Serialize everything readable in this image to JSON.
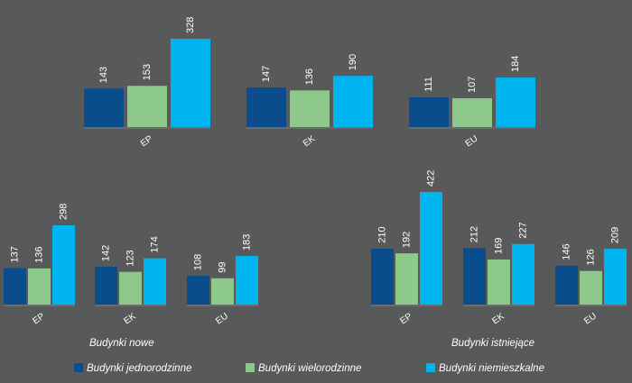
{
  "colors": {
    "background": "#58595b",
    "baseline_band": "#6b6c6e"
  },
  "legend": [
    {
      "label": "Budynki jednorodzinne",
      "color": "#0a4d8c"
    },
    {
      "label": "Budynki wielorodzinne",
      "color": "#8cc98a"
    },
    {
      "label": "Budynki niemieszkalne",
      "color": "#00b4f0"
    }
  ],
  "chart_data": [
    {
      "type": "bar",
      "title": "",
      "categories": [
        "EP",
        "EK",
        "EU"
      ],
      "series": [
        {
          "name": "Budynki jednorodzinne",
          "values": [
            143,
            147,
            111
          ]
        },
        {
          "name": "Budynki wielorodzinne",
          "values": [
            153,
            136,
            107
          ]
        },
        {
          "name": "Budynki niemieszkalne",
          "values": [
            328,
            190,
            184
          ]
        }
      ]
    },
    {
      "type": "bar",
      "title": "Budynki nowe",
      "categories": [
        "EP",
        "EK",
        "EU"
      ],
      "series": [
        {
          "name": "Budynki jednorodzinne",
          "values": [
            137,
            142,
            108
          ]
        },
        {
          "name": "Budynki wielorodzinne",
          "values": [
            136,
            123,
            99
          ]
        },
        {
          "name": "Budynki niemieszkalne",
          "values": [
            298,
            174,
            183
          ]
        }
      ]
    },
    {
      "type": "bar",
      "title": "Budynki istniejące",
      "categories": [
        "EP",
        "EK",
        "EU"
      ],
      "series": [
        {
          "name": "Budynki jednorodzinne",
          "values": [
            210,
            212,
            146
          ]
        },
        {
          "name": "Budynki wielorodzinne",
          "values": [
            192,
            169,
            126
          ]
        },
        {
          "name": "Budynki niemieszkalne",
          "values": [
            422,
            227,
            209
          ]
        }
      ]
    }
  ]
}
